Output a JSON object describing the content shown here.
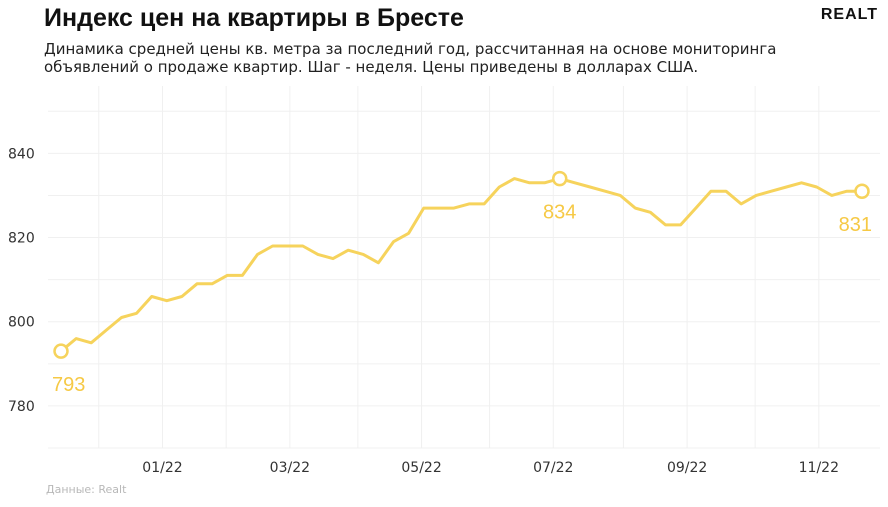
{
  "title": "Индекс цен на квартиры в Бресте",
  "subtitle": "Динамика средней цены кв. метра за последний год, рассчитанная на основе мониторинга объявлений о продаже квартир. Шаг - неделя. Цены приведены в долларах США.",
  "logo": "REALT",
  "source": "Данные: Realt",
  "colors": {
    "line": "#f6d35c",
    "label": "#f6c945",
    "grid": "#f0f0f0"
  },
  "chart_data": {
    "type": "line",
    "x": [
      "2021-11-15",
      "2021-11-22",
      "2021-11-29",
      "2021-12-06",
      "2021-12-13",
      "2021-12-20",
      "2021-12-27",
      "2022-01-03",
      "2022-01-10",
      "2022-01-17",
      "2022-01-24",
      "2022-01-31",
      "2022-02-07",
      "2022-02-14",
      "2022-02-21",
      "2022-02-28",
      "2022-03-07",
      "2022-03-14",
      "2022-03-21",
      "2022-03-28",
      "2022-04-04",
      "2022-04-11",
      "2022-04-18",
      "2022-04-25",
      "2022-05-02",
      "2022-05-09",
      "2022-05-16",
      "2022-05-23",
      "2022-05-30",
      "2022-06-06",
      "2022-06-13",
      "2022-06-20",
      "2022-06-27",
      "2022-07-04",
      "2022-07-11",
      "2022-07-18",
      "2022-07-25",
      "2022-08-01",
      "2022-08-08",
      "2022-08-15",
      "2022-08-22",
      "2022-08-29",
      "2022-09-05",
      "2022-09-12",
      "2022-09-19",
      "2022-09-26",
      "2022-10-03",
      "2022-10-10",
      "2022-10-17",
      "2022-10-24",
      "2022-10-31",
      "2022-11-07",
      "2022-11-14",
      "2022-11-21"
    ],
    "values": [
      793,
      796,
      795,
      798,
      801,
      802,
      806,
      805,
      806,
      809,
      809,
      811,
      811,
      816,
      818,
      818,
      818,
      816,
      815,
      817,
      816,
      814,
      819,
      821,
      827,
      827,
      827,
      828,
      828,
      832,
      834,
      833,
      833,
      834,
      833,
      832,
      831,
      830,
      827,
      826,
      823,
      823,
      827,
      831,
      831,
      828,
      830,
      831,
      832,
      833,
      832,
      830,
      831,
      831
    ],
    "ylim": [
      770,
      856
    ],
    "yticks": [
      780,
      800,
      820,
      840
    ],
    "xticks": [
      {
        "date": "2022-01-01",
        "label": "01/22"
      },
      {
        "date": "2022-03-01",
        "label": "03/22"
      },
      {
        "date": "2022-05-01",
        "label": "05/22"
      },
      {
        "date": "2022-07-01",
        "label": "07/22"
      },
      {
        "date": "2022-09-01",
        "label": "09/22"
      },
      {
        "date": "2022-11-01",
        "label": "11/22"
      }
    ],
    "xlim": [
      "2021-11-11",
      "2021-11-27T00:00:00"
    ],
    "highlights": [
      {
        "index": 0,
        "label": "793"
      },
      {
        "index": 33,
        "label": "834"
      },
      {
        "index": 53,
        "label": "831"
      }
    ],
    "grid": true,
    "xlabel": "",
    "ylabel": ""
  }
}
